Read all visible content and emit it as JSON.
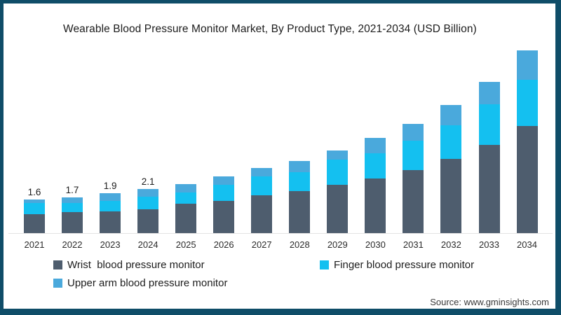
{
  "page": {
    "border_color": "#0f4d68",
    "background_color": "#ffffff"
  },
  "chart_data": {
    "type": "bar",
    "stacked": true,
    "title": "Wearable Blood Pressure Monitor Market, By Product Type, 2021-2034 (USD Billion)",
    "unit": "USD Billion",
    "xlabel": "",
    "ylabel": "",
    "ylim": [
      0,
      9
    ],
    "gridlines": false,
    "y_axis_visible": false,
    "legend_position": "bottom",
    "categories": [
      "2021",
      "2022",
      "2023",
      "2024",
      "2025",
      "2026",
      "2027",
      "2028",
      "2029",
      "2030",
      "2031",
      "2032",
      "2033",
      "2034"
    ],
    "series": [
      {
        "name": "Wrist  blood pressure monitor",
        "color": "#4e5d6e",
        "values": [
          0.9,
          1.0,
          1.05,
          1.15,
          1.4,
          1.55,
          1.8,
          2.0,
          2.3,
          2.6,
          3.0,
          3.55,
          4.2,
          5.1
        ]
      },
      {
        "name": "Finger blood pressure monitor",
        "color": "#14c0f0",
        "values": [
          0.55,
          0.45,
          0.5,
          0.6,
          0.55,
          0.75,
          0.9,
          0.9,
          1.2,
          1.2,
          1.4,
          1.6,
          1.95,
          2.2
        ]
      },
      {
        "name": "Upper arm blood pressure monitor",
        "color": "#4aa9dc",
        "values": [
          0.15,
          0.25,
          0.35,
          0.35,
          0.4,
          0.4,
          0.4,
          0.55,
          0.45,
          0.75,
          0.8,
          0.95,
          1.05,
          1.4
        ]
      }
    ],
    "totals": [
      1.6,
      1.7,
      1.9,
      2.1,
      2.35,
      2.7,
      3.1,
      3.45,
      3.95,
      4.55,
      5.2,
      6.1,
      7.2,
      8.7
    ],
    "bar_labels": [
      "1.6",
      "1.7",
      "1.9",
      "2.1",
      "",
      "",
      "",
      "",
      "",
      "",
      "",
      "",
      "",
      ""
    ]
  },
  "source": {
    "text": "Source: www.gminsights.com"
  }
}
